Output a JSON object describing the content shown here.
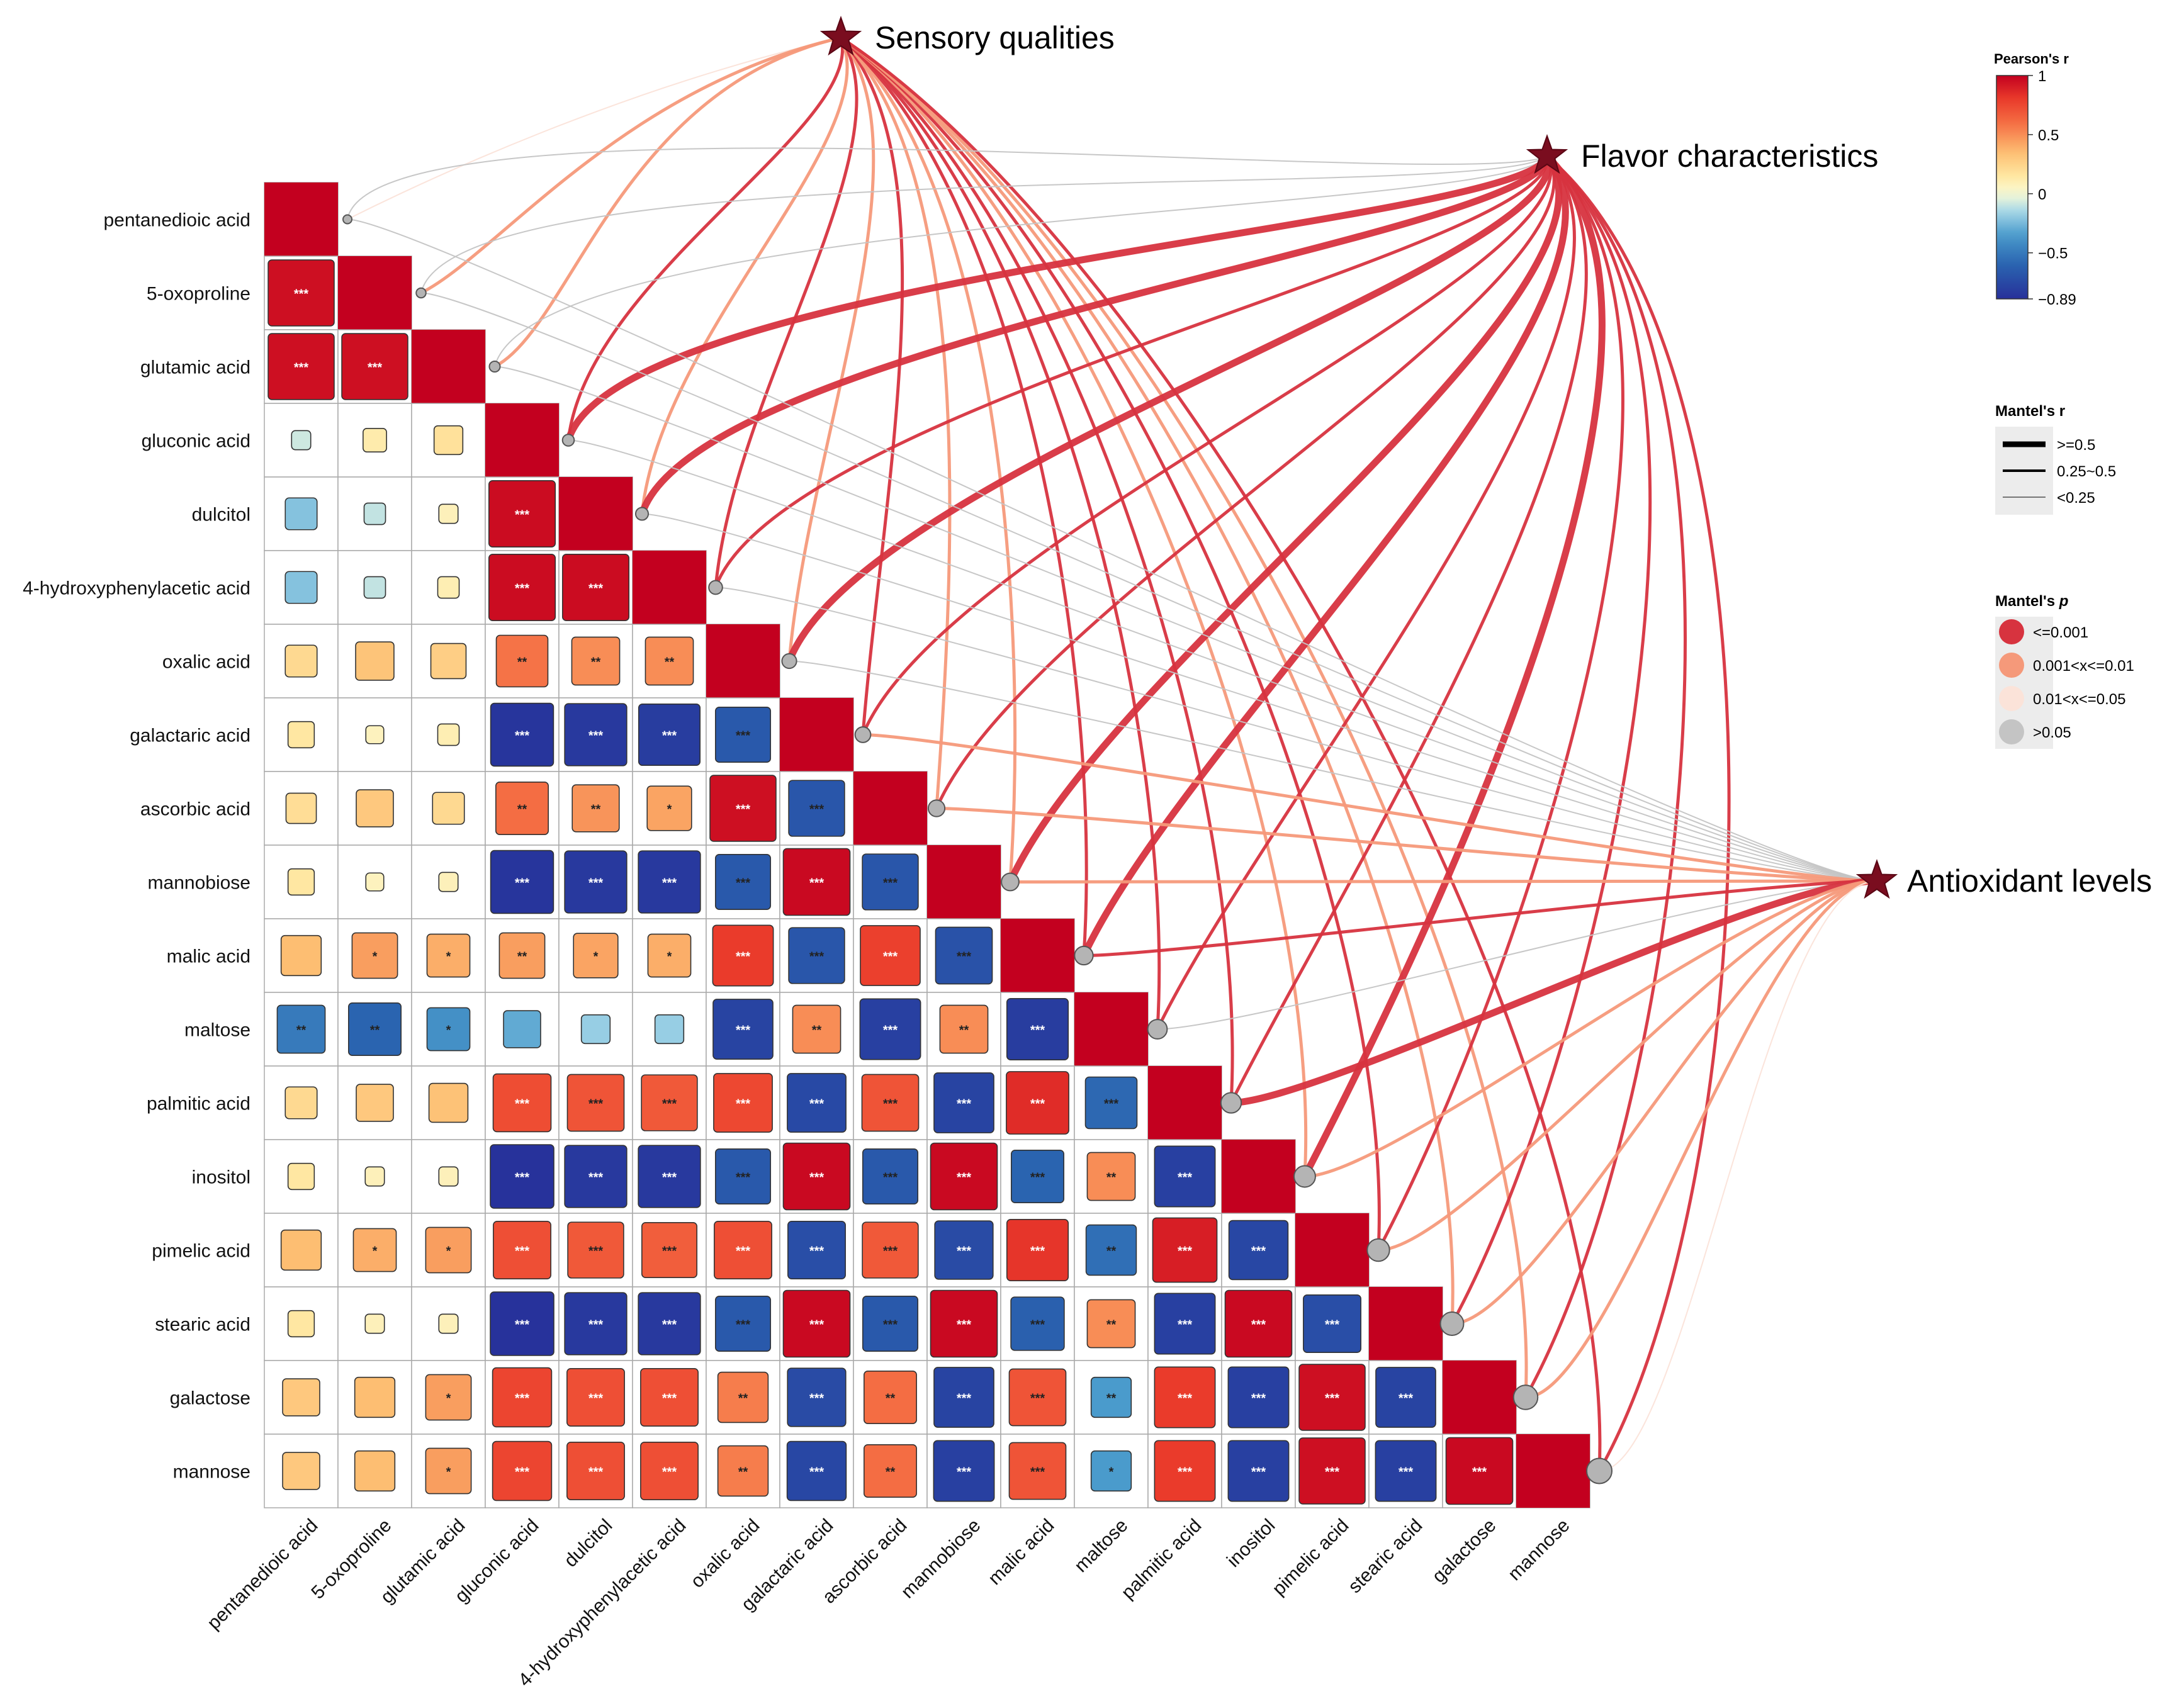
{
  "chart_data": {
    "type": "heatmap",
    "subtype": "correlation-matrix-with-mantel-links",
    "variables": [
      "pentanedioic acid",
      "5-oxoproline",
      "glutamic acid",
      "gluconic acid",
      "dulcitol",
      "4-hydroxyphenylacetic acid",
      "oxalic acid",
      "galactaric acid",
      "ascorbic acid",
      "mannobiose",
      "malic acid",
      "maltose",
      "palmitic acid",
      "inositol",
      "pimelic acid",
      "stearic acid",
      "galactose",
      "mannose"
    ],
    "x_tick_labels": [
      "pentanedioic acid",
      "5-oxoproline",
      "glutamic acid",
      "gluconic acid",
      "dulcitol",
      "4-hydroxyphenylacetic acid",
      "oxalic acid",
      "galactaric acid",
      "ascorbic acid",
      "mannobiose",
      "malic acid",
      "maltose",
      "palmitic acid",
      "inositol",
      "pimelic acid",
      "stearic acid",
      "galactose",
      "mannose"
    ],
    "correlation_r": [
      [
        1
      ],
      [
        0.95,
        1
      ],
      [
        0.95,
        0.95,
        1
      ],
      [
        -0.08,
        0.12,
        0.18,
        1
      ],
      [
        -0.22,
        -0.1,
        0.08,
        0.96,
        1
      ],
      [
        -0.22,
        -0.1,
        0.1,
        0.96,
        0.96,
        1
      ],
      [
        0.22,
        0.32,
        0.27,
        0.58,
        0.5,
        0.5,
        1
      ],
      [
        0.15,
        0.07,
        0.1,
        -0.86,
        -0.84,
        -0.82,
        -0.66,
        1
      ],
      [
        0.2,
        0.3,
        0.22,
        0.6,
        0.48,
        0.43,
        0.95,
        -0.68,
        1
      ],
      [
        0.15,
        0.07,
        0.08,
        -0.86,
        -0.84,
        -0.84,
        -0.66,
        0.97,
        -0.68,
        1
      ],
      [
        0.35,
        0.45,
        0.4,
        0.45,
        0.43,
        0.4,
        0.8,
        -0.68,
        0.78,
        -0.7,
        1
      ],
      [
        -0.5,
        -0.6,
        -0.4,
        -0.3,
        -0.18,
        -0.18,
        -0.78,
        0.5,
        -0.8,
        0.5,
        -0.82,
        1
      ],
      [
        0.22,
        0.3,
        0.33,
        0.73,
        0.7,
        0.68,
        0.75,
        -0.75,
        0.7,
        -0.78,
        0.85,
        -0.58,
        1
      ],
      [
        0.15,
        0.08,
        0.08,
        -0.88,
        -0.84,
        -0.84,
        -0.66,
        0.97,
        -0.66,
        0.97,
        -0.6,
        0.5,
        -0.8,
        1
      ],
      [
        0.35,
        0.4,
        0.45,
        0.72,
        0.68,
        0.66,
        0.72,
        -0.72,
        0.68,
        -0.74,
        0.82,
        -0.55,
        0.9,
        -0.76,
        1
      ],
      [
        0.15,
        0.08,
        0.08,
        -0.88,
        -0.84,
        -0.84,
        -0.66,
        0.97,
        -0.66,
        0.97,
        -0.62,
        0.5,
        -0.8,
        0.97,
        -0.72,
        1
      ],
      [
        0.3,
        0.35,
        0.45,
        0.76,
        0.72,
        0.72,
        0.55,
        -0.74,
        0.6,
        -0.78,
        0.7,
        -0.35,
        0.8,
        -0.8,
        0.95,
        -0.78,
        1
      ],
      [
        0.3,
        0.35,
        0.45,
        0.76,
        0.72,
        0.72,
        0.55,
        -0.76,
        0.6,
        -0.8,
        0.7,
        -0.35,
        0.8,
        -0.8,
        0.95,
        -0.8,
        0.97,
        1
      ]
    ],
    "significance": [
      [
        ""
      ],
      [
        "***",
        ""
      ],
      [
        "***",
        "***",
        ""
      ],
      [
        "",
        "",
        "",
        ""
      ],
      [
        "",
        "",
        "",
        "***",
        ""
      ],
      [
        "",
        "",
        "",
        "***",
        "***",
        ""
      ],
      [
        "",
        "",
        "",
        "**",
        "**",
        "**",
        ""
      ],
      [
        "",
        "",
        "",
        "***",
        "***",
        "***",
        "***",
        ""
      ],
      [
        "",
        "",
        "",
        "**",
        "**",
        "*",
        "***",
        "***",
        ""
      ],
      [
        "",
        "",
        "",
        "***",
        "***",
        "***",
        "***",
        "***",
        "***",
        ""
      ],
      [
        "",
        "*",
        "*",
        "**",
        "*",
        "*",
        "***",
        "***",
        "***",
        "***",
        ""
      ],
      [
        "**",
        "**",
        "*",
        "",
        "",
        "",
        "***",
        "**",
        "***",
        "**",
        "***",
        ""
      ],
      [
        "",
        "",
        "",
        "***",
        "***",
        "***",
        "***",
        "***",
        "***",
        "***",
        "***",
        "***",
        ""
      ],
      [
        "",
        "",
        "",
        "***",
        "***",
        "***",
        "***",
        "***",
        "***",
        "***",
        "***",
        "**",
        "***",
        ""
      ],
      [
        "",
        "*",
        "*",
        "***",
        "***",
        "***",
        "***",
        "***",
        "***",
        "***",
        "***",
        "**",
        "***",
        "***",
        ""
      ],
      [
        "",
        "",
        "",
        "***",
        "***",
        "***",
        "***",
        "***",
        "***",
        "***",
        "***",
        "**",
        "***",
        "***",
        "***",
        ""
      ],
      [
        "",
        "",
        "*",
        "***",
        "***",
        "***",
        "**",
        "***",
        "**",
        "***",
        "***",
        "**",
        "***",
        "***",
        "***",
        "***",
        ""
      ],
      [
        "",
        "",
        "*",
        "***",
        "***",
        "***",
        "**",
        "***",
        "**",
        "***",
        "***",
        "*",
        "***",
        "***",
        "***",
        "***",
        "***",
        ""
      ]
    ],
    "mantel_targets": [
      "Sensory qualities",
      "Flavor characteristics",
      "Antioxidant levels"
    ],
    "mantel_links": {
      "Sensory qualities": [
        {
          "r": 0.12,
          "p": "0.01<x<=0.05"
        },
        {
          "r": 0.3,
          "p": "0.001<x<=0.01"
        },
        {
          "r": 0.3,
          "p": "0.001<x<=0.01"
        },
        {
          "r": 0.3,
          "p": "<=0.001"
        },
        {
          "r": 0.3,
          "p": "0.001<x<=0.01"
        },
        {
          "r": 0.3,
          "p": "<=0.001"
        },
        {
          "r": 0.3,
          "p": "0.001<x<=0.01"
        },
        {
          "r": 0.3,
          "p": "<=0.001"
        },
        {
          "r": 0.3,
          "p": "0.001<x<=0.01"
        },
        {
          "r": 0.3,
          "p": "0.001<x<=0.01"
        },
        {
          "r": 0.3,
          "p": "<=0.001"
        },
        {
          "r": 0.3,
          "p": "<=0.001"
        },
        {
          "r": 0.3,
          "p": "<=0.001"
        },
        {
          "r": 0.3,
          "p": "0.001<x<=0.01"
        },
        {
          "r": 0.3,
          "p": "<=0.001"
        },
        {
          "r": 0.3,
          "p": "0.001<x<=0.01"
        },
        {
          "r": 0.3,
          "p": "0.001<x<=0.01"
        },
        {
          "r": 0.3,
          "p": "<=0.001"
        }
      ],
      "Flavor characteristics": [
        {
          "r": 0.12,
          "p": ">0.05"
        },
        {
          "r": 0.12,
          "p": ">0.05"
        },
        {
          "r": 0.12,
          "p": ">0.05"
        },
        {
          "r": 0.55,
          "p": "<=0.001"
        },
        {
          "r": 0.55,
          "p": "<=0.001"
        },
        {
          "r": 0.3,
          "p": "<=0.001"
        },
        {
          "r": 0.55,
          "p": "<=0.001"
        },
        {
          "r": 0.3,
          "p": "<=0.001"
        },
        {
          "r": 0.3,
          "p": "<=0.001"
        },
        {
          "r": 0.55,
          "p": "<=0.001"
        },
        {
          "r": 0.55,
          "p": "<=0.001"
        },
        {
          "r": 0.3,
          "p": "<=0.001"
        },
        {
          "r": 0.3,
          "p": "<=0.001"
        },
        {
          "r": 0.55,
          "p": "<=0.001"
        },
        {
          "r": 0.3,
          "p": "<=0.001"
        },
        {
          "r": 0.3,
          "p": "<=0.001"
        },
        {
          "r": 0.3,
          "p": "<=0.001"
        },
        {
          "r": 0.3,
          "p": "<=0.001"
        }
      ],
      "Antioxidant levels": [
        {
          "r": 0.12,
          "p": ">0.05"
        },
        {
          "r": 0.12,
          "p": ">0.05"
        },
        {
          "r": 0.12,
          "p": ">0.05"
        },
        {
          "r": 0.12,
          "p": ">0.05"
        },
        {
          "r": 0.12,
          "p": ">0.05"
        },
        {
          "r": 0.12,
          "p": ">0.05"
        },
        {
          "r": 0.12,
          "p": ">0.05"
        },
        {
          "r": 0.3,
          "p": "0.001<x<=0.01"
        },
        {
          "r": 0.3,
          "p": "0.001<x<=0.01"
        },
        {
          "r": 0.3,
          "p": "0.001<x<=0.01"
        },
        {
          "r": 0.3,
          "p": "<=0.001"
        },
        {
          "r": 0.12,
          "p": ">0.05"
        },
        {
          "r": 0.55,
          "p": "<=0.001"
        },
        {
          "r": 0.3,
          "p": "0.001<x<=0.01"
        },
        {
          "r": 0.3,
          "p": "0.001<x<=0.01"
        },
        {
          "r": 0.3,
          "p": "0.001<x<=0.01"
        },
        {
          "r": 0.3,
          "p": "0.001<x<=0.01"
        },
        {
          "r": 0.12,
          "p": "0.01<x<=0.05"
        }
      ]
    },
    "legend": {
      "pearson_title": "Pearson's r",
      "pearson_ticks": [
        "1",
        "0.5",
        "0",
        "−0.5",
        "−0.89"
      ],
      "pearson_tick_values": [
        1,
        0.5,
        0,
        -0.5,
        -0.89
      ],
      "pearson_range": [
        -0.89,
        1
      ],
      "mantel_r_title": "Mantel's r",
      "mantel_r_items": [
        ">=0.5",
        "0.25~0.5",
        "<0.25"
      ],
      "mantel_r_values": [
        0.55,
        0.3,
        0.12
      ],
      "mantel_p_title": "Mantel's ",
      "mantel_p_title_italic": "p",
      "mantel_p_items": [
        "<=0.001",
        "0.001<x<=0.01",
        "0.01<x<=0.05",
        ">0.05"
      ]
    },
    "colors": {
      "p_le_0_001": "#d7333f",
      "p_0_001_0_01": "#f5997a",
      "p_0_01_0_05": "#fbe3d9",
      "p_gt_0_05": "#c4c4c4",
      "star": "#7a0d1f",
      "node": "#b4b4b4",
      "grid": "#aaaaaa",
      "colormap": [
        [
          -0.89,
          "#27309a"
        ],
        [
          -0.6,
          "#2a64b0"
        ],
        [
          -0.35,
          "#4a9bcc"
        ],
        [
          -0.15,
          "#a5d7e8"
        ],
        [
          0,
          "#fbfbd6"
        ],
        [
          0.15,
          "#ffe7a2"
        ],
        [
          0.35,
          "#fdbe72"
        ],
        [
          0.6,
          "#f46d43"
        ],
        [
          0.8,
          "#ea3b2b"
        ],
        [
          1,
          "#c3001f"
        ]
      ]
    }
  }
}
